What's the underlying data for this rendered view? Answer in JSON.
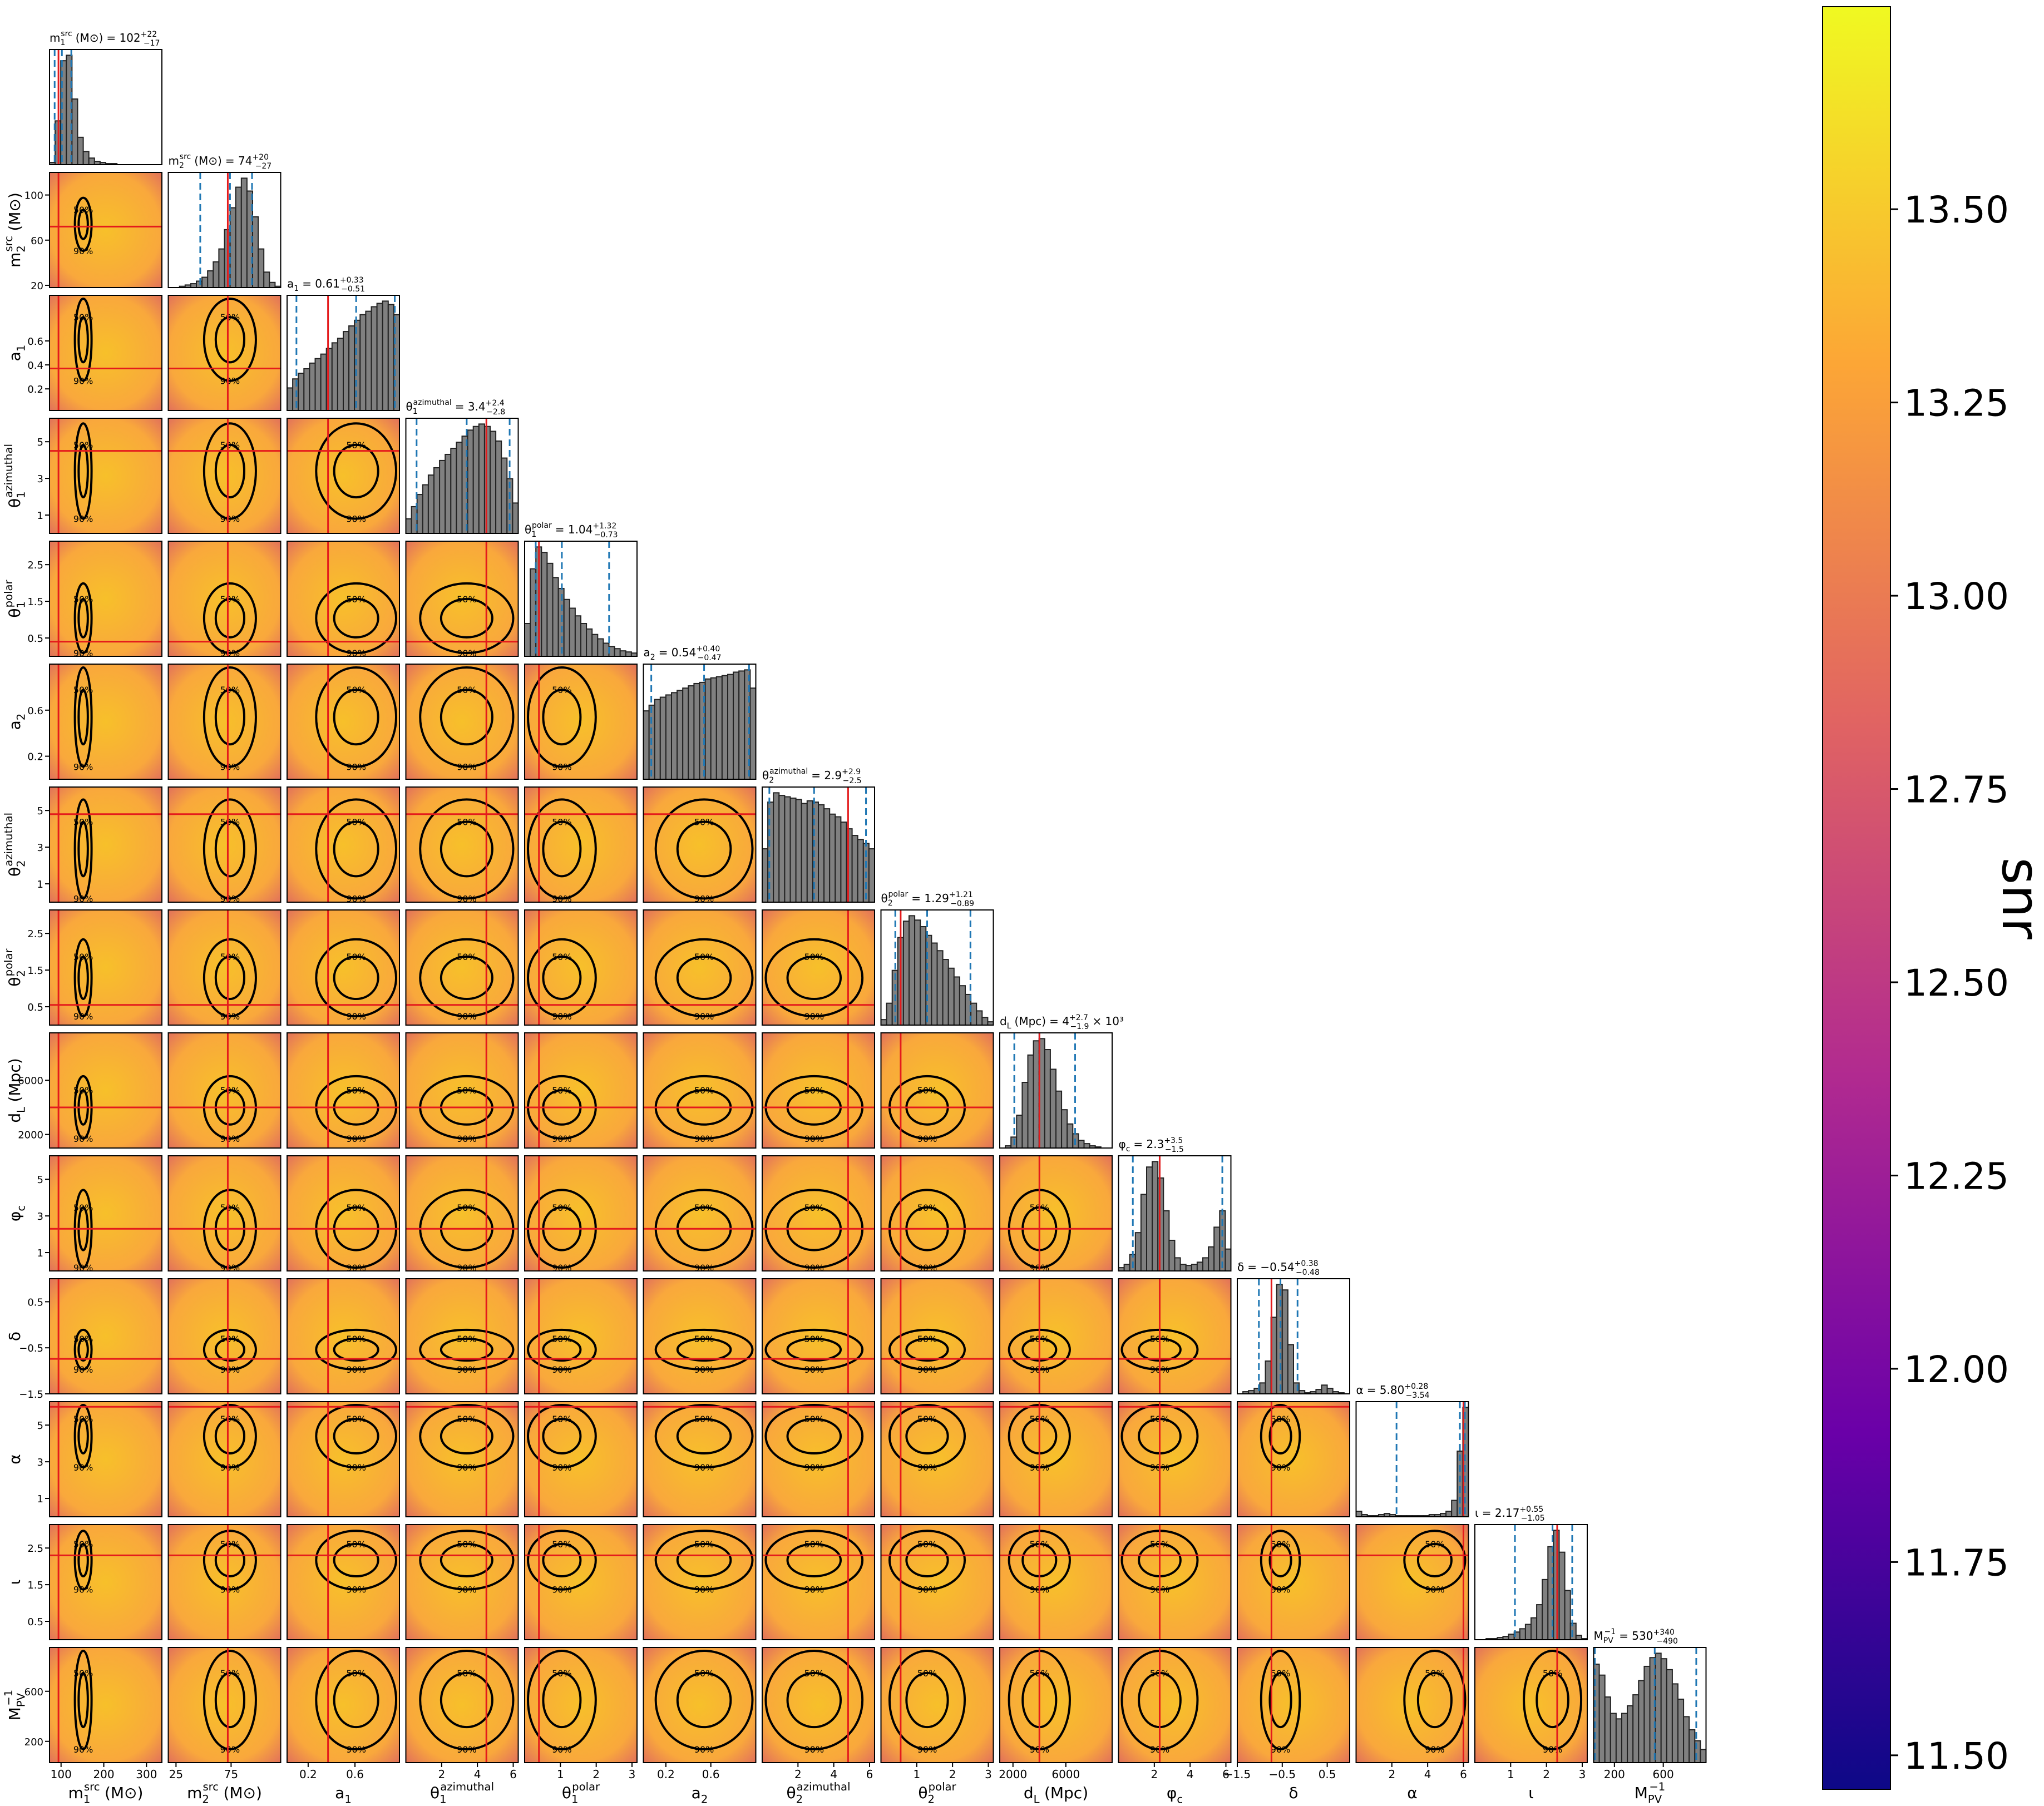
{
  "chart_data": {
    "type": "corner",
    "contour_labels": [
      "50%",
      "90%"
    ],
    "params": [
      {
        "symbol": "m",
        "sub": "1",
        "sup": "src",
        "unit": "(M⊙)",
        "median": "= 102",
        "plus": "+22",
        "minus": "−17",
        "lim": [
          73,
          336
        ],
        "xticks": [
          100,
          200,
          300
        ],
        "yticks": [],
        "truth": 94,
        "quantiles": [
          85,
          102,
          124
        ],
        "hist": [
          2,
          40,
          95,
          100,
          60,
          25,
          12,
          6,
          3,
          2,
          1,
          1,
          0,
          0,
          0,
          0,
          0,
          0,
          0,
          0
        ]
      },
      {
        "symbol": "m",
        "sub": "2",
        "sup": "src",
        "unit": "(M⊙)",
        "median": "= 74",
        "plus": "+20",
        "minus": "−27",
        "lim": [
          18,
          120
        ],
        "xticks": [
          25,
          75
        ],
        "yticks": [
          20,
          60,
          100
        ],
        "truth": 72,
        "quantiles": [
          47,
          74,
          94
        ],
        "hist": [
          0,
          0,
          1,
          2,
          3,
          5,
          8,
          13,
          20,
          30,
          45,
          62,
          78,
          85,
          75,
          55,
          30,
          12,
          4,
          1
        ]
      },
      {
        "symbol": "a",
        "sub": "1",
        "median": "= 0.61",
        "plus": "+0.33",
        "minus": "−0.51",
        "lim": [
          0.02,
          0.98
        ],
        "xticks": [
          0.2,
          0.6
        ],
        "yticks": [
          0.2,
          0.4,
          0.6
        ],
        "truth": 0.37,
        "quantiles": [
          0.1,
          0.61,
          0.94
        ],
        "hist": [
          20,
          28,
          33,
          37,
          42,
          46,
          50,
          55,
          60,
          64,
          70,
          75,
          80,
          85,
          88,
          92,
          95,
          97,
          94,
          85
        ]
      },
      {
        "symbol": "θ",
        "sub": "1",
        "sup": "azimuthal",
        "median": "= 3.4",
        "plus": "+2.4",
        "minus": "−2.8",
        "lim": [
          0,
          6.28
        ],
        "xticks": [
          2,
          4,
          6
        ],
        "yticks": [
          1,
          3,
          5
        ],
        "truth": 4.5,
        "quantiles": [
          0.6,
          3.4,
          5.8
        ],
        "hist": [
          12,
          22,
          32,
          40,
          48,
          54,
          60,
          65,
          70,
          75,
          80,
          85,
          88,
          90,
          88,
          84,
          76,
          62,
          45,
          25
        ]
      },
      {
        "symbol": "θ",
        "sub": "1",
        "sup": "polar",
        "median": "= 1.04",
        "plus": "+1.32",
        "minus": "−0.73",
        "lim": [
          0,
          3.14
        ],
        "xticks": [
          1,
          2,
          3
        ],
        "yticks": [
          0.5,
          1.5,
          2.5
        ],
        "truth": 0.4,
        "quantiles": [
          0.31,
          1.04,
          2.36
        ],
        "hist": [
          30,
          80,
          100,
          95,
          85,
          72,
          62,
          52,
          44,
          37,
          30,
          25,
          20,
          16,
          12,
          9,
          7,
          5,
          4,
          3
        ]
      },
      {
        "symbol": "a",
        "sub": "2",
        "median": "= 0.54",
        "plus": "+0.40",
        "minus": "−0.47",
        "lim": [
          0,
          1
        ],
        "xticks": [
          0.2,
          0.6
        ],
        "yticks": [
          0.2,
          0.6
        ],
        "truth": null,
        "quantiles": [
          0.07,
          0.54,
          0.94
        ],
        "hist": [
          60,
          65,
          70,
          72,
          74,
          76,
          78,
          80,
          82,
          84,
          85,
          88,
          89,
          90,
          91,
          92,
          94,
          95,
          96,
          80
        ]
      },
      {
        "symbol": "θ",
        "sub": "2",
        "sup": "azimuthal",
        "median": "= 2.9",
        "plus": "+2.9",
        "minus": "−2.5",
        "lim": [
          0,
          6.28
        ],
        "xticks": [
          2,
          4,
          6
        ],
        "yticks": [
          1,
          3,
          5
        ],
        "truth": 4.8,
        "quantiles": [
          0.4,
          2.9,
          5.8
        ],
        "hist": [
          40,
          75,
          82,
          80,
          79,
          78,
          77,
          74,
          76,
          75,
          73,
          70,
          66,
          64,
          60,
          55,
          50,
          47,
          44,
          40
        ]
      },
      {
        "symbol": "θ",
        "sub": "2",
        "sup": "polar",
        "median": "= 1.29",
        "plus": "+1.21",
        "minus": "−0.89",
        "lim": [
          0,
          3.14
        ],
        "xticks": [
          1,
          2,
          3
        ],
        "yticks": [
          0.5,
          1.5,
          2.5
        ],
        "truth": 0.55,
        "quantiles": [
          0.4,
          1.29,
          2.5
        ],
        "hist": [
          5,
          20,
          50,
          80,
          95,
          100,
          96,
          90,
          82,
          75,
          68,
          60,
          52,
          44,
          36,
          28,
          20,
          13,
          7,
          3
        ]
      },
      {
        "symbol": "d",
        "sub": "L",
        "unit": "(Mpc)",
        "median": "= 4",
        "plus": "+2.7",
        "minus": "−1.9",
        "suffix": "× 10³",
        "lim": [
          1000,
          9500
        ],
        "xticks": [
          2000,
          6000
        ],
        "yticks": [
          2000,
          6000
        ],
        "truth": 4000,
        "quantiles": [
          2100,
          4000,
          6700
        ],
        "hist": [
          0,
          2,
          10,
          30,
          60,
          85,
          98,
          100,
          90,
          72,
          52,
          35,
          22,
          13,
          7,
          4,
          2,
          1,
          0,
          0
        ]
      },
      {
        "symbol": "φ",
        "sub": "c",
        "median": "= 2.3",
        "plus": "+3.5",
        "minus": "−1.5",
        "lim": [
          0,
          6.28
        ],
        "xticks": [
          2,
          4,
          6
        ],
        "yticks": [
          1,
          3,
          5
        ],
        "truth": 2.3,
        "quantiles": [
          0.8,
          2.3,
          5.8
        ],
        "hist": [
          3,
          6,
          15,
          35,
          70,
          95,
          100,
          85,
          55,
          28,
          12,
          6,
          5,
          6,
          8,
          12,
          22,
          40,
          55,
          20
        ]
      },
      {
        "symbol": "δ",
        "median": "= −0.54",
        "plus": "+0.38",
        "minus": "−0.48",
        "lim": [
          -1.5,
          1.0
        ],
        "xticks": [
          {
            "value": -1.5,
            "label": "−1.5"
          },
          {
            "value": -0.5,
            "label": "−0.5"
          },
          0.5
        ],
        "yticks": [
          {
            "value": -1.5,
            "label": "−1.5"
          },
          {
            "value": -0.5,
            "label": "−0.5"
          },
          0.5
        ],
        "truth": -0.74,
        "quantiles": [
          -1.02,
          -0.54,
          -0.16
        ],
        "hist": [
          0,
          2,
          3,
          5,
          10,
          30,
          70,
          100,
          95,
          45,
          10,
          3,
          1,
          2,
          4,
          8,
          5,
          2,
          1,
          0
        ]
      },
      {
        "symbol": "α",
        "median": "= 5.80",
        "plus": "+0.28",
        "minus": "−3.54",
        "lim": [
          0,
          6.28
        ],
        "xticks": [
          2,
          4,
          6
        ],
        "yticks": [
          1,
          3,
          5
        ],
        "truth": 6.0,
        "quantiles": [
          2.26,
          5.8,
          6.08
        ],
        "hist": [
          5,
          2,
          1,
          1,
          2,
          3,
          2,
          1,
          1,
          1,
          1,
          1,
          1,
          2,
          2,
          3,
          5,
          15,
          60,
          100
        ]
      },
      {
        "symbol": "ι",
        "median": "= 2.17",
        "plus": "+0.55",
        "minus": "−1.05",
        "lim": [
          0,
          3.14
        ],
        "xticks": [
          1,
          2,
          3
        ],
        "yticks": [
          0.5,
          1.5,
          2.5
        ],
        "truth": 2.3,
        "quantiles": [
          1.12,
          2.17,
          2.72
        ],
        "hist": [
          0,
          0,
          1,
          1,
          2,
          3,
          5,
          7,
          10,
          14,
          20,
          32,
          55,
          85,
          100,
          80,
          45,
          15,
          4,
          1
        ]
      },
      {
        "symbol": "M",
        "sub": "PV",
        "sup": "−1",
        "median": "= 530",
        "plus": "+340",
        "minus": "−490",
        "lim": [
          30,
          950
        ],
        "xticks": [
          200,
          600
        ],
        "yticks": [
          200,
          600
        ],
        "truth": null,
        "quantiles": [
          40,
          530,
          870
        ],
        "hist": [
          90,
          80,
          60,
          45,
          40,
          45,
          52,
          62,
          75,
          88,
          96,
          100,
          95,
          85,
          72,
          58,
          42,
          30,
          20,
          12
        ]
      }
    ],
    "colorbar": {
      "label": "snr",
      "lim": [
        11.456,
        13.762
      ],
      "ticks": [
        {
          "value": 11.5,
          "label": "11.50"
        },
        11.75,
        {
          "value": 12.0,
          "label": "12.00"
        },
        12.25,
        {
          "value": 12.5,
          "label": "12.50"
        },
        12.75,
        {
          "value": 13.0,
          "label": "13.00"
        },
        13.25,
        {
          "value": 13.5,
          "label": "13.50"
        }
      ]
    }
  }
}
